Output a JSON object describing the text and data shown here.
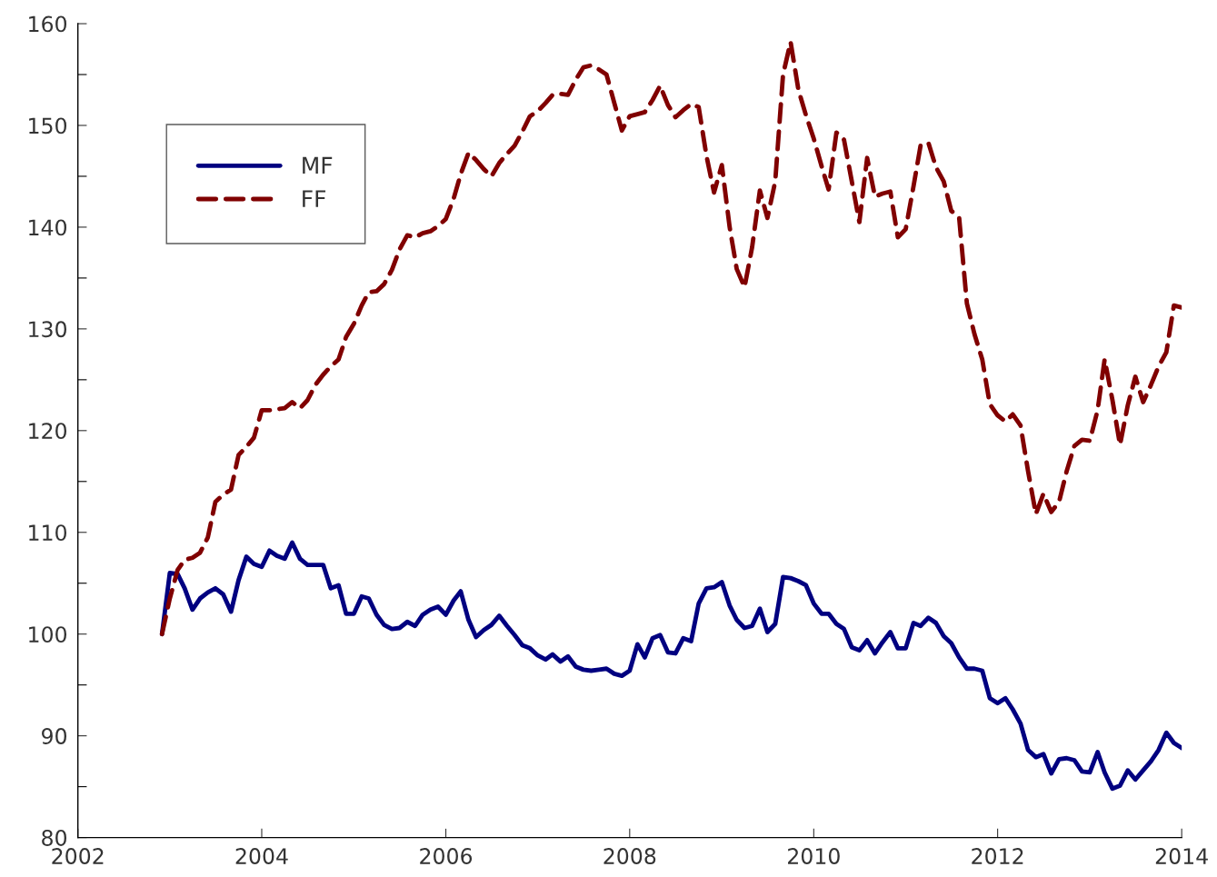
{
  "chart_data": {
    "type": "line",
    "x": [
      "2002-12",
      "2003-01",
      "2003-02",
      "2003-03",
      "2003-04",
      "2003-05",
      "2003-06",
      "2003-07",
      "2003-08",
      "2003-09",
      "2003-10",
      "2003-11",
      "2003-12",
      "2004-01",
      "2004-02",
      "2004-03",
      "2004-04",
      "2004-05",
      "2004-06",
      "2004-07",
      "2004-08",
      "2004-09",
      "2004-10",
      "2004-11",
      "2004-12",
      "2005-01",
      "2005-02",
      "2005-03",
      "2005-04",
      "2005-05",
      "2005-06",
      "2005-07",
      "2005-08",
      "2005-09",
      "2005-10",
      "2005-11",
      "2005-12",
      "2006-01",
      "2006-02",
      "2006-03",
      "2006-04",
      "2006-05",
      "2006-06",
      "2006-07",
      "2006-08",
      "2006-09",
      "2006-10",
      "2006-11",
      "2006-12",
      "2007-01",
      "2007-02",
      "2007-03",
      "2007-04",
      "2007-05",
      "2007-06",
      "2007-07",
      "2007-08",
      "2007-09",
      "2007-10",
      "2007-11",
      "2007-12",
      "2008-01",
      "2008-02",
      "2008-03",
      "2008-04",
      "2008-05",
      "2008-06",
      "2008-07",
      "2008-08",
      "2008-09",
      "2008-10",
      "2008-11",
      "2008-12",
      "2009-01",
      "2009-02",
      "2009-03",
      "2009-04",
      "2009-05",
      "2009-06",
      "2009-07",
      "2009-08",
      "2009-09",
      "2009-10",
      "2009-11",
      "2009-12",
      "2010-01",
      "2010-02",
      "2010-03",
      "2010-04",
      "2010-05",
      "2010-06",
      "2010-07",
      "2010-08",
      "2010-09",
      "2010-10",
      "2010-11",
      "2010-12",
      "2011-01",
      "2011-02",
      "2011-03",
      "2011-04",
      "2011-05",
      "2011-06",
      "2011-07",
      "2011-08",
      "2011-09",
      "2011-10",
      "2011-11",
      "2011-12",
      "2012-01",
      "2012-02",
      "2012-03",
      "2012-04",
      "2012-05",
      "2012-06",
      "2012-07",
      "2012-08",
      "2012-09",
      "2012-10",
      "2012-11",
      "2012-12",
      "2013-01",
      "2013-02",
      "2013-03",
      "2013-04",
      "2013-05",
      "2013-06",
      "2013-07",
      "2013-08",
      "2013-09",
      "2013-10",
      "2013-11",
      "2013-12",
      "2014-01"
    ],
    "xlim": [
      "2002-01-01",
      "2014-01-01"
    ],
    "xticks": [
      {
        "value": "2002-01-01",
        "label": "2002"
      },
      {
        "value": "2004-01-01",
        "label": "2004"
      },
      {
        "value": "2006-01-01",
        "label": "2006"
      },
      {
        "value": "2008-01-01",
        "label": "2008"
      },
      {
        "value": "2010-01-01",
        "label": "2010"
      },
      {
        "value": "2012-01-01",
        "label": "2012"
      },
      {
        "value": "2014-01-01",
        "label": "2014"
      }
    ],
    "ylim": [
      80,
      160
    ],
    "yticks": [
      80,
      {
        "value": 85,
        "label": null
      },
      90,
      {
        "value": 95,
        "label": null
      },
      100,
      {
        "value": 105,
        "label": null
      },
      110,
      {
        "value": 115,
        "label": null
      },
      120,
      {
        "value": 125,
        "label": null
      },
      130,
      {
        "value": 135,
        "label": null
      },
      140,
      {
        "value": 145,
        "label": null
      },
      150,
      {
        "value": 155,
        "label": null
      },
      160
    ],
    "grid": false,
    "legend": "top left",
    "marker": "none",
    "series": [
      {
        "name": "MF",
        "color": "#000080",
        "line_style": "solid",
        "values": [
          100.0,
          106.0,
          105.9,
          104.5,
          102.4,
          103.5,
          104.1,
          104.5,
          103.9,
          102.2,
          105.3,
          107.6,
          106.9,
          106.6,
          108.2,
          107.7,
          107.4,
          109.0,
          107.4,
          106.8,
          106.8,
          106.8,
          104.5,
          104.8,
          102.0,
          102.0,
          103.7,
          103.5,
          101.9,
          100.9,
          100.5,
          100.6,
          101.2,
          100.8,
          101.9,
          102.4,
          102.7,
          101.9,
          103.3,
          104.2,
          101.4,
          99.7,
          100.4,
          100.9,
          101.8,
          100.8,
          99.9,
          98.9,
          98.6,
          97.9,
          97.5,
          98.0,
          97.3,
          97.8,
          96.8,
          96.5,
          96.4,
          96.5,
          96.6,
          96.1,
          95.9,
          96.4,
          99.0,
          97.7,
          99.6,
          99.9,
          98.2,
          98.1,
          99.6,
          99.3,
          103.0,
          104.5,
          104.6,
          105.1,
          102.8,
          101.4,
          100.6,
          100.8,
          102.5,
          100.2,
          101.0,
          105.6,
          105.5,
          105.2,
          104.8,
          103.0,
          102.0,
          102.0,
          101.0,
          100.5,
          98.7,
          98.4,
          99.4,
          98.1,
          99.2,
          100.2,
          98.6,
          98.6,
          101.1,
          100.8,
          101.6,
          101.1,
          99.8,
          99.1,
          97.7,
          96.6,
          96.6,
          96.4,
          93.7,
          93.2,
          93.7,
          92.6,
          91.2,
          88.6,
          87.9,
          88.2,
          86.3,
          87.7,
          87.8,
          87.6,
          86.5,
          86.4,
          88.4,
          86.4,
          84.8,
          85.1,
          86.6,
          85.7,
          86.6,
          87.5,
          88.6,
          90.3,
          89.3,
          88.8
        ]
      },
      {
        "name": "FF",
        "color": "#800000",
        "line_style": "dashed",
        "values": [
          100.0,
          103.5,
          106.3,
          107.3,
          107.5,
          108.0,
          109.5,
          113.0,
          113.7,
          114.2,
          117.6,
          118.4,
          119.3,
          122.0,
          122.0,
          122.1,
          122.2,
          122.8,
          122.2,
          123.0,
          124.5,
          125.5,
          126.3,
          127.0,
          129.2,
          130.5,
          132.3,
          133.6,
          133.7,
          134.4,
          135.8,
          137.8,
          139.2,
          139.0,
          139.4,
          139.6,
          140.1,
          140.8,
          142.8,
          145.2,
          147.3,
          146.6,
          145.7,
          145.0,
          146.3,
          147.2,
          148.0,
          149.4,
          150.9,
          151.4,
          152.2,
          153.0,
          153.1,
          153.0,
          154.5,
          155.7,
          155.9,
          155.5,
          155.0,
          152.2,
          149.5,
          150.9,
          151.1,
          151.3,
          152.5,
          153.9,
          152.0,
          150.8,
          151.5,
          152.1,
          151.8,
          147.0,
          143.4,
          146.1,
          140.0,
          135.9,
          134.1,
          138.0,
          143.6,
          140.9,
          144.5,
          155.0,
          158.2,
          153.5,
          151.0,
          148.7,
          146.0,
          143.7,
          149.3,
          148.6,
          144.5,
          140.5,
          146.8,
          143.0,
          143.3,
          143.5,
          139.0,
          139.8,
          144.0,
          148.0,
          148.3,
          145.9,
          144.5,
          141.6,
          141.0,
          132.5,
          129.5,
          127.0,
          122.6,
          121.5,
          120.9,
          121.6,
          120.5,
          116.0,
          111.8,
          113.8,
          112.0,
          113.0,
          116.0,
          118.5,
          119.1,
          119.0,
          122.0,
          127.0,
          123.0,
          118.6,
          122.5,
          125.3,
          122.8,
          124.5,
          126.3,
          127.7,
          132.3,
          132.1
        ]
      }
    ]
  }
}
